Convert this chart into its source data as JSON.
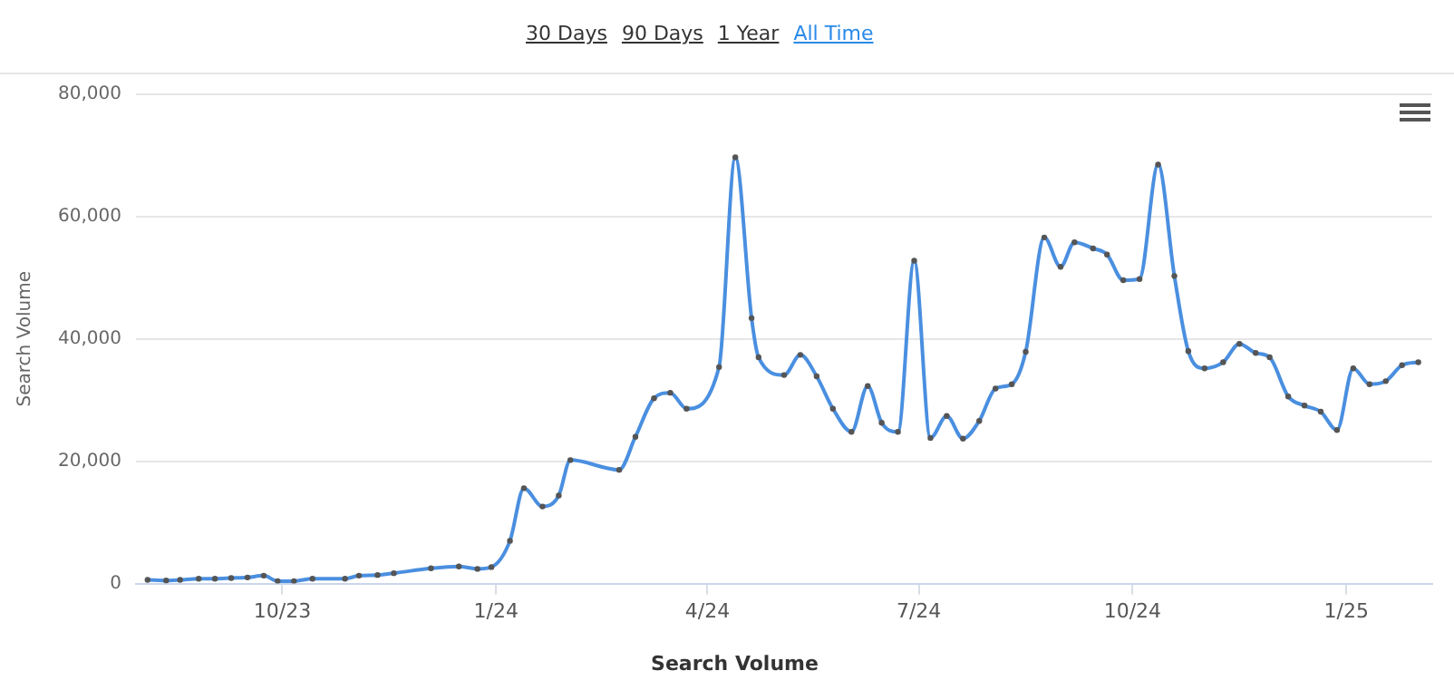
{
  "chart_data": {
    "type": "line",
    "ylabel": "Search Volume",
    "annotations": [
      "30 Days",
      "90 Days",
      "1 Year",
      "All Time"
    ],
    "xlim": [
      "2023-07-30",
      "2025-02-07"
    ],
    "xticks": [
      {
        "value": "2023-10-01",
        "label": "10/23"
      },
      {
        "value": "2024-01-01",
        "label": "1/24"
      },
      {
        "value": "2024-04-01",
        "label": "4/24"
      },
      {
        "value": "2024-07-01",
        "label": "7/24"
      },
      {
        "value": "2024-10-01",
        "label": "10/24"
      },
      {
        "value": "2025-01-01",
        "label": "1/25"
      }
    ],
    "ylim": [
      0,
      80000
    ],
    "yticks": [
      0,
      {
        "value": 20000,
        "label": "20,000"
      },
      {
        "value": 40000,
        "label": "40,000"
      },
      {
        "value": 60000,
        "label": "60,000"
      },
      {
        "value": 80000,
        "label": "80,000"
      }
    ],
    "grid": "y",
    "legend": "bottom",
    "marker": "circle",
    "line_style": "solid",
    "series": [
      {
        "name": "Search Volume",
        "color": "#4a8fe0",
        "x": [
          "2023-08-04",
          "2023-08-12",
          "2023-08-18",
          "2023-08-26",
          "2023-09-02",
          "2023-09-09",
          "2023-09-16",
          "2023-09-23",
          "2023-09-29",
          "2023-10-06",
          "2023-10-14",
          "2023-10-28",
          "2023-11-03",
          "2023-11-11",
          "2023-11-18",
          "2023-12-04",
          "2023-12-16",
          "2023-12-24",
          "2023-12-30",
          "2024-01-07",
          "2024-01-13",
          "2024-01-21",
          "2024-01-28",
          "2024-02-02",
          "2024-02-23",
          "2024-03-01",
          "2024-03-09",
          "2024-03-16",
          "2024-03-23",
          "2024-04-06",
          "2024-04-13",
          "2024-04-20",
          "2024-04-23",
          "2024-05-04",
          "2024-05-11",
          "2024-05-18",
          "2024-05-25",
          "2024-06-02",
          "2024-06-09",
          "2024-06-15",
          "2024-06-22",
          "2024-06-29",
          "2024-07-06",
          "2024-07-13",
          "2024-07-20",
          "2024-07-27",
          "2024-08-03",
          "2024-08-10",
          "2024-08-16",
          "2024-08-24",
          "2024-08-31",
          "2024-09-06",
          "2024-09-14",
          "2024-09-20",
          "2024-09-27",
          "2024-10-04",
          "2024-10-12",
          "2024-10-19",
          "2024-10-25",
          "2024-11-01",
          "2024-11-09",
          "2024-11-16",
          "2024-11-23",
          "2024-11-29",
          "2024-12-07",
          "2024-12-14",
          "2024-12-21",
          "2024-12-28",
          "2025-01-04",
          "2025-01-11",
          "2025-01-18",
          "2025-01-25",
          "2025-02-01"
        ],
        "values": [
          600,
          500,
          600,
          800,
          800,
          900,
          1000,
          1300,
          400,
          400,
          800,
          800,
          1300,
          1400,
          1700,
          2500,
          2800,
          2400,
          2700,
          7000,
          15600,
          12600,
          14400,
          20200,
          18600,
          24000,
          30300,
          31200,
          28600,
          35400,
          69700,
          43400,
          37000,
          34100,
          37400,
          33900,
          28600,
          24800,
          32300,
          26300,
          24800,
          52800,
          23800,
          27400,
          23700,
          26600,
          31900,
          32600,
          37900,
          56600,
          51800,
          55800,
          54800,
          53800,
          49600,
          49800,
          68500,
          50300,
          38000,
          35200,
          36200,
          39200,
          37700,
          37000,
          30600,
          29100,
          28100,
          25100,
          35200,
          32600,
          33100,
          35700,
          36200
        ]
      }
    ]
  }
}
